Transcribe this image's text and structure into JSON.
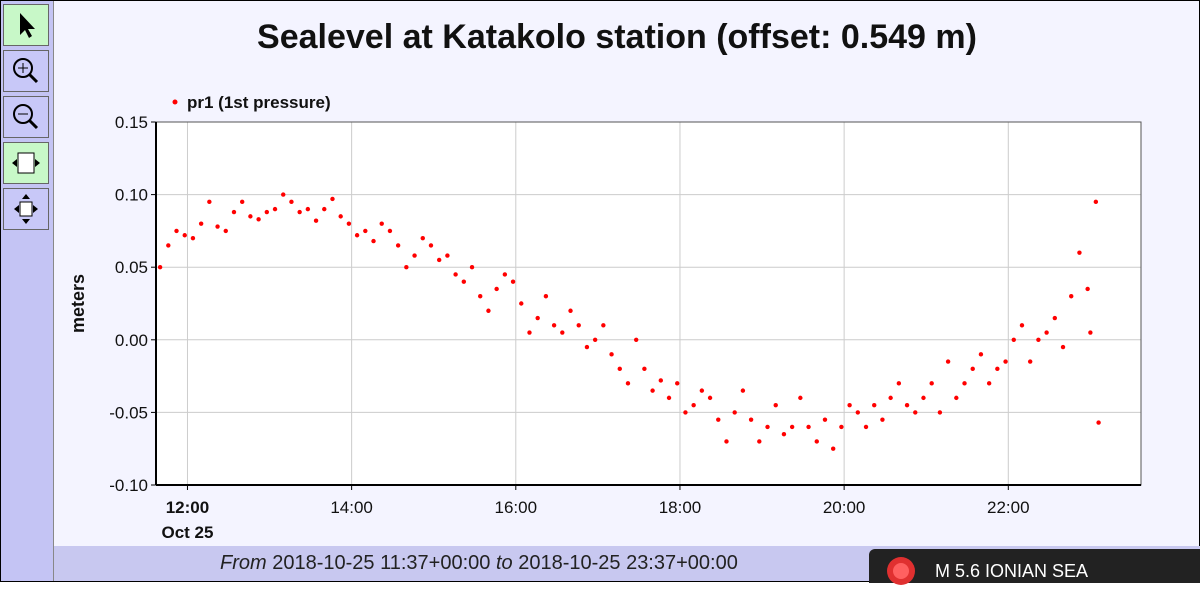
{
  "chart_data": {
    "type": "scatter",
    "title": "Sealevel at Katakolo station (offset: 0.549 m)",
    "ylabel": "meters",
    "x_first_tick_date": "Oct 25",
    "xlim": [
      "2018-10-25 11:37",
      "2018-10-25 23:37"
    ],
    "xticks": [
      {
        "value": "2018-10-25 12:00",
        "label": "12:00"
      },
      {
        "value": "2018-10-25 14:00",
        "label": "14:00"
      },
      {
        "value": "2018-10-25 16:00",
        "label": "16:00"
      },
      {
        "value": "2018-10-25 18:00",
        "label": "18:00"
      },
      {
        "value": "2018-10-25 20:00",
        "label": "20:00"
      },
      {
        "value": "2018-10-25 22:00",
        "label": "22:00"
      }
    ],
    "ylim": [
      -0.1,
      0.15
    ],
    "yticks": [
      {
        "value": -0.1,
        "label": "-0.10"
      },
      -0.05,
      {
        "value": 0,
        "label": "0.00"
      },
      0.05,
      {
        "value": 0.1,
        "label": "0.10"
      },
      0.15
    ],
    "grid": true,
    "legend": "top-left",
    "series": [
      {
        "name": "pr1 (1st pressure)",
        "color": "#ff0000",
        "x": [
          "2018-10-25 11:40",
          "2018-10-25 11:46",
          "2018-10-25 11:52",
          "2018-10-25 11:58",
          "2018-10-25 12:04",
          "2018-10-25 12:10",
          "2018-10-25 12:16",
          "2018-10-25 12:22",
          "2018-10-25 12:28",
          "2018-10-25 12:34",
          "2018-10-25 12:40",
          "2018-10-25 12:46",
          "2018-10-25 12:52",
          "2018-10-25 12:58",
          "2018-10-25 13:04",
          "2018-10-25 13:10",
          "2018-10-25 13:16",
          "2018-10-25 13:22",
          "2018-10-25 13:28",
          "2018-10-25 13:34",
          "2018-10-25 13:40",
          "2018-10-25 13:46",
          "2018-10-25 13:52",
          "2018-10-25 13:58",
          "2018-10-25 14:04",
          "2018-10-25 14:10",
          "2018-10-25 14:16",
          "2018-10-25 14:22",
          "2018-10-25 14:28",
          "2018-10-25 14:34",
          "2018-10-25 14:40",
          "2018-10-25 14:46",
          "2018-10-25 14:52",
          "2018-10-25 14:58",
          "2018-10-25 15:04",
          "2018-10-25 15:10",
          "2018-10-25 15:16",
          "2018-10-25 15:22",
          "2018-10-25 15:28",
          "2018-10-25 15:34",
          "2018-10-25 15:40",
          "2018-10-25 15:46",
          "2018-10-25 15:52",
          "2018-10-25 15:58",
          "2018-10-25 16:04",
          "2018-10-25 16:10",
          "2018-10-25 16:16",
          "2018-10-25 16:22",
          "2018-10-25 16:28",
          "2018-10-25 16:34",
          "2018-10-25 16:40",
          "2018-10-25 16:46",
          "2018-10-25 16:52",
          "2018-10-25 16:58",
          "2018-10-25 17:04",
          "2018-10-25 17:10",
          "2018-10-25 17:16",
          "2018-10-25 17:22",
          "2018-10-25 17:28",
          "2018-10-25 17:34",
          "2018-10-25 17:40",
          "2018-10-25 17:46",
          "2018-10-25 17:52",
          "2018-10-25 17:58",
          "2018-10-25 18:04",
          "2018-10-25 18:10",
          "2018-10-25 18:16",
          "2018-10-25 18:22",
          "2018-10-25 18:28",
          "2018-10-25 18:34",
          "2018-10-25 18:40",
          "2018-10-25 18:46",
          "2018-10-25 18:52",
          "2018-10-25 18:58",
          "2018-10-25 19:04",
          "2018-10-25 19:10",
          "2018-10-25 19:16",
          "2018-10-25 19:22",
          "2018-10-25 19:28",
          "2018-10-25 19:34",
          "2018-10-25 19:40",
          "2018-10-25 19:46",
          "2018-10-25 19:52",
          "2018-10-25 19:58",
          "2018-10-25 20:04",
          "2018-10-25 20:10",
          "2018-10-25 20:16",
          "2018-10-25 20:22",
          "2018-10-25 20:28",
          "2018-10-25 20:34",
          "2018-10-25 20:40",
          "2018-10-25 20:46",
          "2018-10-25 20:52",
          "2018-10-25 20:58",
          "2018-10-25 21:04",
          "2018-10-25 21:10",
          "2018-10-25 21:16",
          "2018-10-25 21:22",
          "2018-10-25 21:28",
          "2018-10-25 21:34",
          "2018-10-25 21:40",
          "2018-10-25 21:46",
          "2018-10-25 21:52",
          "2018-10-25 21:58",
          "2018-10-25 22:04",
          "2018-10-25 22:10",
          "2018-10-25 22:16",
          "2018-10-25 22:22",
          "2018-10-25 22:28",
          "2018-10-25 22:34",
          "2018-10-25 22:40",
          "2018-10-25 22:46",
          "2018-10-25 22:52",
          "2018-10-25 22:58",
          "2018-10-25 23:00",
          "2018-10-25 23:04",
          "2018-10-25 23:06"
        ],
        "values": [
          0.05,
          0.065,
          0.075,
          0.072,
          0.07,
          0.08,
          0.095,
          0.078,
          0.075,
          0.088,
          0.095,
          0.085,
          0.083,
          0.088,
          0.09,
          0.1,
          0.095,
          0.088,
          0.09,
          0.082,
          0.09,
          0.097,
          0.085,
          0.08,
          0.072,
          0.075,
          0.068,
          0.08,
          0.075,
          0.065,
          0.05,
          0.058,
          0.07,
          0.065,
          0.055,
          0.058,
          0.045,
          0.04,
          0.05,
          0.03,
          0.02,
          0.035,
          0.045,
          0.04,
          0.025,
          0.005,
          0.015,
          0.03,
          0.01,
          0.005,
          0.02,
          0.01,
          -0.005,
          0.0,
          0.01,
          -0.01,
          -0.02,
          -0.03,
          0.0,
          -0.02,
          -0.035,
          -0.028,
          -0.04,
          -0.03,
          -0.05,
          -0.045,
          -0.035,
          -0.04,
          -0.055,
          -0.07,
          -0.05,
          -0.035,
          -0.055,
          -0.07,
          -0.06,
          -0.045,
          -0.065,
          -0.06,
          -0.04,
          -0.06,
          -0.07,
          -0.055,
          -0.075,
          -0.06,
          -0.045,
          -0.05,
          -0.06,
          -0.045,
          -0.055,
          -0.04,
          -0.03,
          -0.045,
          -0.05,
          -0.04,
          -0.03,
          -0.05,
          -0.015,
          -0.04,
          -0.03,
          -0.02,
          -0.01,
          -0.03,
          -0.02,
          -0.015,
          0.0,
          0.01,
          -0.015,
          0.0,
          0.005,
          0.015,
          -0.005,
          0.03,
          0.06,
          0.035,
          0.005,
          0.095,
          -0.057
        ]
      }
    ]
  },
  "footer": {
    "from_label": "From",
    "start": "2018-10-25 11:37+00:00",
    "to_label": "to",
    "end": "2018-10-25 23:37+00:00"
  },
  "notification": {
    "text": "M 5.6 IONIAN SEA"
  }
}
